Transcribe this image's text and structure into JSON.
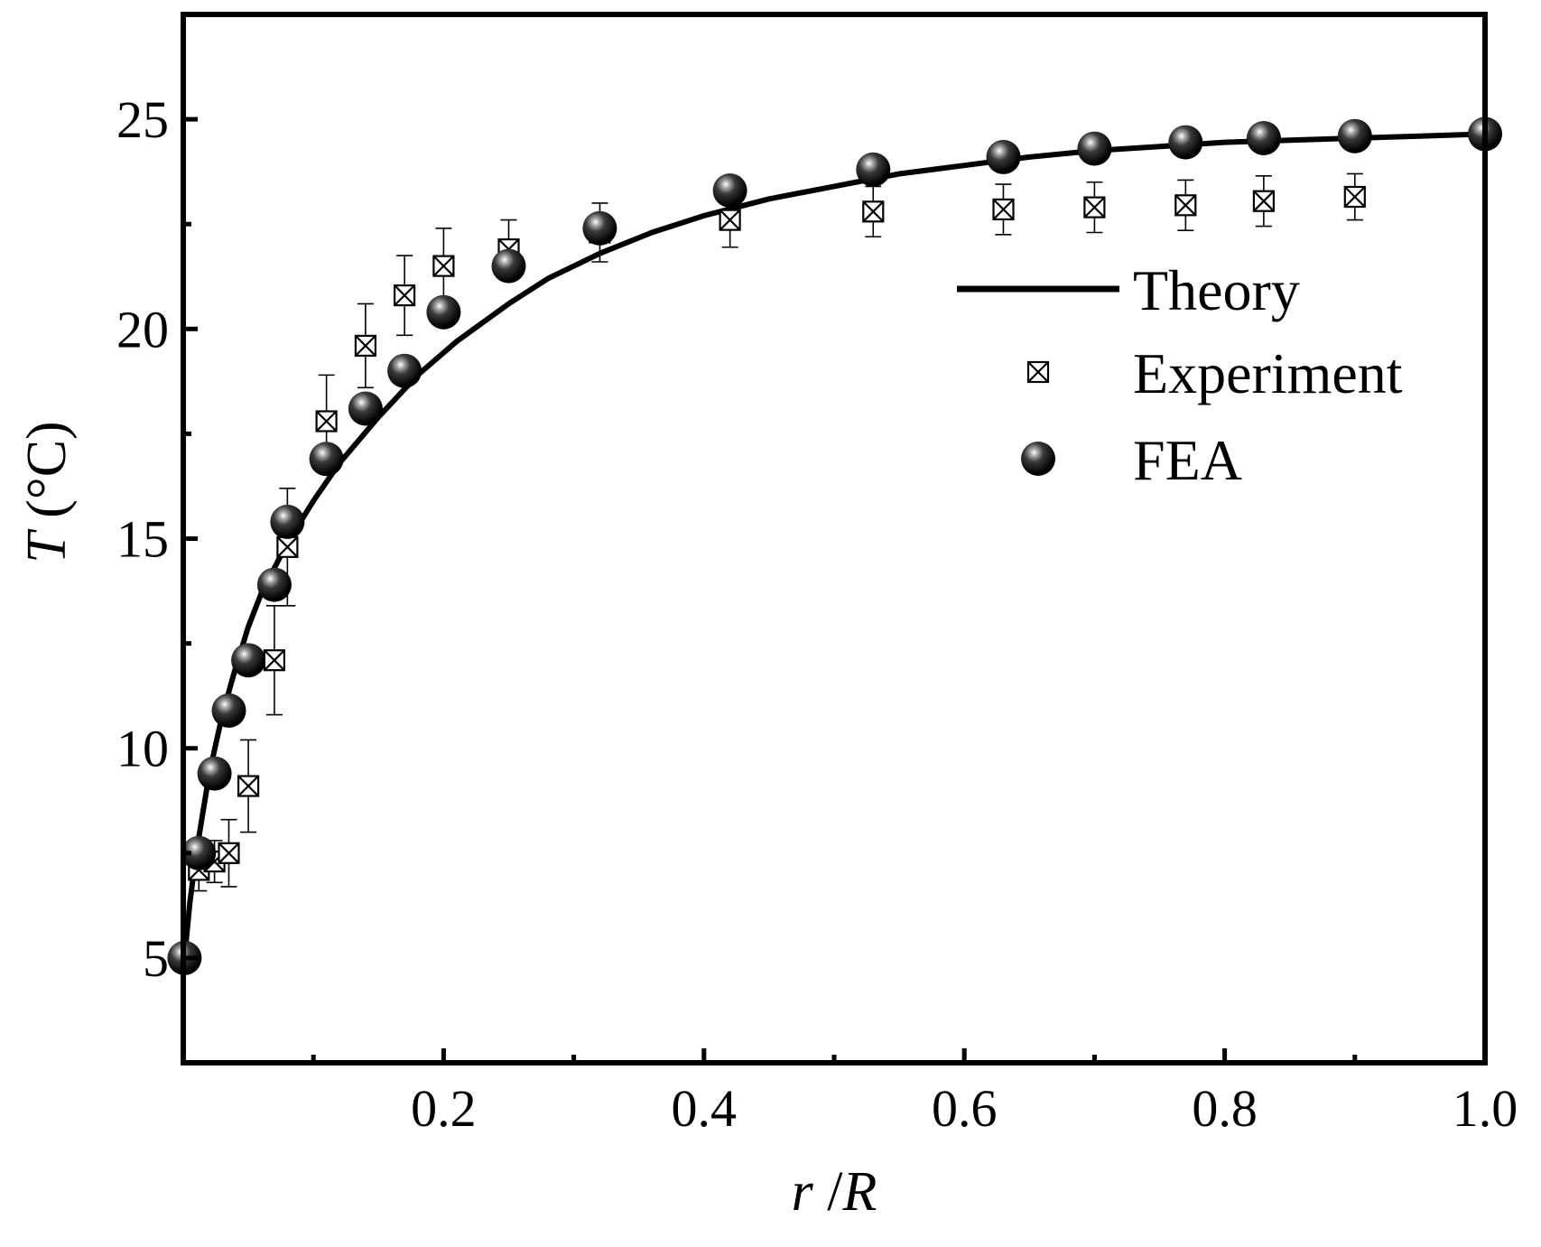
{
  "chart_data": {
    "type": "scatter",
    "xlabel": {
      "var": "r",
      "sep": " /",
      "var2": "R"
    },
    "ylabel": {
      "var": "T",
      "unit": " (°C)"
    },
    "xlim": [
      0.0,
      1.0
    ],
    "ylim": [
      2.5,
      27.5
    ],
    "x_ticks_major": [
      0.2,
      0.4,
      0.6,
      0.8,
      1.0
    ],
    "x_tick_labels": [
      "0.2",
      "0.4",
      "0.6",
      "0.8",
      "1.0"
    ],
    "x_ticks_minor": [
      0.1,
      0.3,
      0.5,
      0.7,
      0.9
    ],
    "y_ticks_major": [
      5,
      10,
      15,
      20,
      25
    ],
    "y_tick_labels": [
      "5",
      "10",
      "15",
      "20",
      "25"
    ],
    "y_ticks_minor": [
      7.5,
      12.5,
      17.5,
      22.5
    ],
    "grid": false,
    "legend": {
      "position": "right",
      "entries": [
        "Theory",
        "Experiment",
        "FEA"
      ]
    },
    "series": [
      {
        "name": "Theory",
        "style": "line",
        "color": "#000000",
        "x": [
          0.001,
          0.005,
          0.01,
          0.02,
          0.03,
          0.04,
          0.05,
          0.06,
          0.08,
          0.1,
          0.12,
          0.15,
          0.18,
          0.21,
          0.25,
          0.28,
          0.32,
          0.36,
          0.4,
          0.45,
          0.5,
          0.55,
          0.6,
          0.65,
          0.7,
          0.75,
          0.8,
          0.85,
          0.9,
          0.95,
          1.0
        ],
        "y": [
          5.0,
          6.3,
          7.5,
          9.4,
          10.8,
          11.9,
          12.9,
          13.7,
          14.9,
          15.9,
          16.8,
          17.9,
          18.9,
          19.7,
          20.6,
          21.2,
          21.8,
          22.3,
          22.7,
          23.1,
          23.4,
          23.7,
          23.9,
          24.1,
          24.25,
          24.35,
          24.45,
          24.5,
          24.55,
          24.6,
          24.65
        ]
      },
      {
        "name": "Experiment",
        "style": "marker",
        "marker": "boxed-x",
        "color": "#000000",
        "x": [
          0.012,
          0.024,
          0.035,
          0.05,
          0.07,
          0.08,
          0.11,
          0.14,
          0.17,
          0.2,
          0.25,
          0.32,
          0.42,
          0.53,
          0.63,
          0.7,
          0.77,
          0.83,
          0.9
        ],
        "y": [
          7.1,
          7.3,
          7.5,
          9.1,
          12.1,
          14.8,
          17.8,
          19.6,
          20.8,
          21.5,
          21.9,
          22.3,
          22.6,
          22.8,
          22.85,
          22.9,
          22.95,
          23.05,
          23.15
        ],
        "err": [
          0.5,
          0.5,
          0.8,
          1.1,
          1.3,
          1.4,
          1.1,
          1.0,
          0.95,
          0.9,
          0.7,
          0.7,
          0.65,
          0.6,
          0.6,
          0.6,
          0.6,
          0.6,
          0.55
        ]
      },
      {
        "name": "FEA",
        "style": "marker",
        "marker": "shaded-sphere",
        "color": "#000000",
        "x": [
          0.001,
          0.012,
          0.024,
          0.035,
          0.05,
          0.07,
          0.08,
          0.11,
          0.14,
          0.17,
          0.2,
          0.25,
          0.32,
          0.42,
          0.53,
          0.63,
          0.7,
          0.77,
          0.83,
          0.9,
          1.0
        ],
        "y": [
          5.0,
          7.5,
          9.4,
          10.9,
          12.1,
          13.9,
          15.4,
          16.9,
          18.1,
          19.0,
          20.4,
          21.5,
          22.4,
          23.3,
          23.8,
          24.1,
          24.3,
          24.45,
          24.55,
          24.6,
          24.65
        ]
      }
    ]
  }
}
